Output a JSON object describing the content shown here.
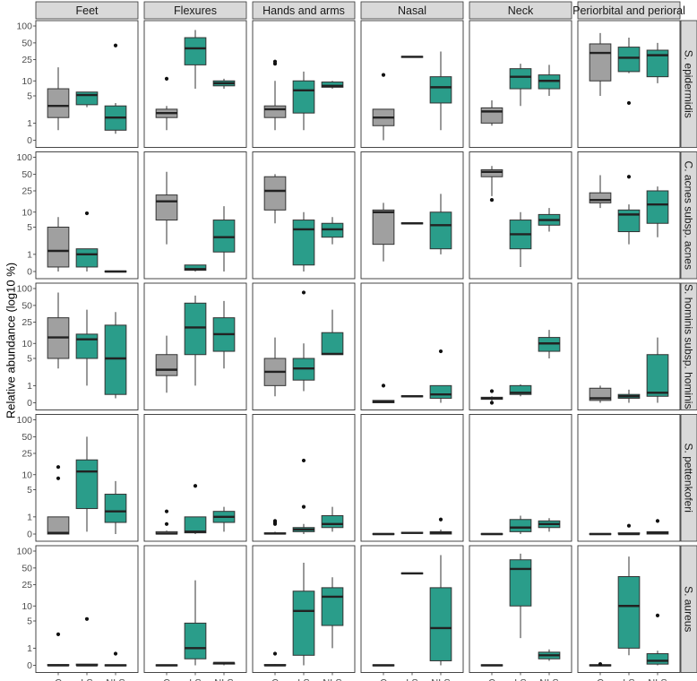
{
  "ylabel": "Relative abundance (log10 %)",
  "y_ticks": [
    "0",
    "1",
    "5",
    "10",
    "25",
    "50",
    "100"
  ],
  "colors": {
    "C": "#a0a0a0",
    "LS": "#2a9d8a",
    "NLS": "#2a9d8a",
    "strip": "#d9d9d9"
  },
  "chart_data": {
    "type": "boxplot",
    "y_scale": "log10(x+1)",
    "ylim": [
      0,
      100
    ],
    "ylabel": "Relative abundance (log10 %)",
    "groups": [
      "C",
      "LS",
      "NLS"
    ],
    "columns": [
      "Feet",
      "Flexures",
      "Hands and arms",
      "Nasal",
      "Neck",
      "Periorbital and perioral"
    ],
    "rows": [
      "S. epidermidis",
      "C. acnes subsp. acnes",
      "S. hominis subsp. hominis",
      "S. pettenkoferi",
      "S. aureus"
    ],
    "panels": [
      [
        [
          {
            "min": 0.5,
            "q1": 1.5,
            "med": 3,
            "q3": 7,
            "max": 18,
            "out": []
          },
          {
            "min": 2.8,
            "q1": 3.2,
            "med": 5.2,
            "q3": 6,
            "max": 6,
            "out": []
          },
          {
            "min": 0.3,
            "q1": 0.5,
            "med": 1.5,
            "q3": 3,
            "max": 3.5,
            "out": [
              45
            ]
          }
        ],
        [
          {
            "min": 0.5,
            "q1": 1.5,
            "med": 2,
            "q3": 2.5,
            "max": 3,
            "out": [
              11
            ]
          },
          {
            "min": 7,
            "q1": 20,
            "med": 40,
            "q3": 62,
            "max": 85,
            "out": []
          },
          {
            "min": 7,
            "q1": 8,
            "med": 9,
            "q3": 10,
            "max": 11,
            "out": []
          }
        ],
        [
          {
            "min": 0.5,
            "q1": 1.5,
            "med": 2.5,
            "q3": 3,
            "max": 10,
            "out": [
              21,
              23
            ]
          },
          {
            "min": 0.5,
            "q1": 2,
            "med": 6.5,
            "q3": 10,
            "max": 15,
            "out": []
          },
          {
            "min": 7,
            "q1": 7.5,
            "med": 8,
            "q3": 9.5,
            "max": 10,
            "out": []
          }
        ],
        [
          {
            "min": 0,
            "q1": 0.8,
            "med": 1.5,
            "q3": 2.5,
            "max": 2.5,
            "out": [
              13
            ]
          },
          {
            "min": 28,
            "q1": 28,
            "med": 28,
            "q3": 28,
            "max": 28,
            "out": []
          },
          {
            "min": 0.5,
            "q1": 3.5,
            "med": 7.5,
            "q3": 12,
            "max": 35,
            "out": []
          }
        ],
        [
          {
            "min": 0.8,
            "q1": 1,
            "med": 2.2,
            "q3": 2.7,
            "max": 4,
            "out": []
          },
          {
            "min": 3,
            "q1": 7,
            "med": 12,
            "q3": 17,
            "max": 21,
            "out": []
          },
          {
            "min": 5,
            "q1": 7,
            "med": 10,
            "q3": 13,
            "max": 20,
            "out": []
          }
        ],
        [
          {
            "min": 5,
            "q1": 10,
            "med": 33,
            "q3": 48,
            "max": 75,
            "out": []
          },
          {
            "min": 14,
            "q1": 15,
            "med": 27,
            "q3": 42,
            "max": 62,
            "out": [
              3.5
            ]
          },
          {
            "min": 9,
            "q1": 12,
            "med": 30,
            "q3": 37,
            "max": 50,
            "out": []
          }
        ]
      ],
      [
        [
          {
            "min": 0,
            "q1": 0.2,
            "med": 1.3,
            "q3": 5,
            "max": 8,
            "out": []
          },
          {
            "min": 0,
            "q1": 0.2,
            "med": 1,
            "q3": 1.5,
            "max": 1.5,
            "out": [
              9.5
            ]
          },
          {
            "min": 0,
            "q1": 0,
            "med": 0,
            "q3": 0,
            "max": 0,
            "out": []
          }
        ],
        [
          {
            "min": 2,
            "q1": 7,
            "med": 16,
            "q3": 21,
            "max": 55,
            "out": []
          },
          {
            "min": 0,
            "q1": 0.05,
            "med": 0.1,
            "q3": 0.3,
            "max": 0.3,
            "out": []
          },
          {
            "min": 0,
            "q1": 1.2,
            "med": 3,
            "q3": 7,
            "max": 13,
            "out": []
          }
        ],
        [
          {
            "min": 6,
            "q1": 11,
            "med": 25,
            "q3": 45,
            "max": 50,
            "out": []
          },
          {
            "min": 0,
            "q1": 0.3,
            "med": 4.5,
            "q3": 7,
            "max": 10,
            "out": []
          },
          {
            "min": 2,
            "q1": 3,
            "med": 4.5,
            "q3": 6,
            "max": 8,
            "out": []
          }
        ],
        [
          {
            "min": 0.5,
            "q1": 2,
            "med": 10,
            "q3": 11,
            "max": 15,
            "out": []
          },
          {
            "min": 6,
            "q1": 6,
            "med": 6,
            "q3": 6,
            "max": 6,
            "out": []
          },
          {
            "min": 1,
            "q1": 1.5,
            "med": 5.5,
            "q3": 10,
            "max": 22,
            "out": []
          }
        ],
        [
          {
            "min": 20,
            "q1": 45,
            "med": 55,
            "q3": 60,
            "max": 70,
            "out": [
              17
            ]
          },
          {
            "min": 0.2,
            "q1": 1.5,
            "med": 3.5,
            "q3": 7,
            "max": 10,
            "out": []
          },
          {
            "min": 4,
            "q1": 5.5,
            "med": 7,
            "q3": 9,
            "max": 12,
            "out": []
          }
        ],
        [
          {
            "min": 12,
            "q1": 15,
            "med": 17,
            "q3": 23,
            "max": 48,
            "out": []
          },
          {
            "min": 2,
            "q1": 4,
            "med": 9,
            "q3": 11,
            "max": 14,
            "out": [
              45
            ]
          },
          {
            "min": 3,
            "q1": 6,
            "med": 14,
            "q3": 25,
            "max": 30,
            "out": []
          }
        ]
      ],
      [
        [
          {
            "min": 3,
            "q1": 5,
            "med": 13,
            "q3": 30,
            "max": 85,
            "out": []
          },
          {
            "min": 1,
            "q1": 5,
            "med": 12,
            "q3": 15,
            "max": 42,
            "out": []
          },
          {
            "min": 0.2,
            "q1": 0.4,
            "med": 5,
            "q3": 22,
            "max": 38,
            "out": []
          }
        ],
        [
          {
            "min": 0.5,
            "q1": 2,
            "med": 2.8,
            "q3": 6,
            "max": 14,
            "out": []
          },
          {
            "min": 1,
            "q1": 6,
            "med": 20,
            "q3": 55,
            "max": 75,
            "out": []
          },
          {
            "min": 3,
            "q1": 7,
            "med": 15,
            "q3": 30,
            "max": 60,
            "out": []
          }
        ],
        [
          {
            "min": 0.3,
            "q1": 1,
            "med": 2.5,
            "q3": 5,
            "max": 13,
            "out": []
          },
          {
            "min": 0.6,
            "q1": 1.5,
            "med": 3,
            "q3": 5,
            "max": 10,
            "out": [
              85
            ]
          },
          {
            "min": 6,
            "q1": 6,
            "med": 6.2,
            "q3": 16,
            "max": 42,
            "out": []
          }
        ],
        [
          {
            "min": 0,
            "q1": 0,
            "med": 0.05,
            "q3": 0.1,
            "max": 0.1,
            "out": [
              1
            ]
          },
          {
            "min": 0.3,
            "q1": 0.3,
            "med": 0.3,
            "q3": 0.3,
            "max": 0.3,
            "out": []
          },
          {
            "min": 0,
            "q1": 0.2,
            "med": 0.4,
            "q3": 1,
            "max": 1,
            "out": [
              7
            ]
          }
        ],
        [
          {
            "min": 0.05,
            "q1": 0.15,
            "med": 0.2,
            "q3": 0.25,
            "max": 0.3,
            "out": [
              0.6,
              0
            ]
          },
          {
            "min": 0.3,
            "q1": 0.4,
            "med": 0.5,
            "q3": 1,
            "max": 1.1,
            "out": []
          },
          {
            "min": 5,
            "q1": 7,
            "med": 10,
            "q3": 13,
            "max": 18,
            "out": []
          }
        ],
        [
          {
            "min": 0,
            "q1": 0.1,
            "med": 0.2,
            "q3": 0.8,
            "max": 1,
            "out": []
          },
          {
            "min": 0,
            "q1": 0.2,
            "med": 0.3,
            "q3": 0.4,
            "max": 0.7,
            "out": []
          },
          {
            "min": 0,
            "q1": 0.3,
            "med": 0.5,
            "q3": 6,
            "max": 13,
            "out": []
          }
        ]
      ],
      [
        [
          {
            "min": 0,
            "q1": 0,
            "med": 0.05,
            "q3": 1,
            "max": 1,
            "out": [
              8.5,
              14
            ]
          },
          {
            "min": 0.1,
            "q1": 1.8,
            "med": 11.5,
            "q3": 19,
            "max": 50,
            "out": []
          },
          {
            "min": 0,
            "q1": 0.6,
            "med": 1.5,
            "q3": 4,
            "max": 7.5,
            "out": []
          }
        ],
        [
          {
            "min": 0,
            "q1": 0,
            "med": 0.02,
            "q3": 0.1,
            "max": 0.15,
            "out": [
              0.5,
              1.5
            ]
          },
          {
            "min": 0,
            "q1": 0.05,
            "med": 0.1,
            "q3": 1,
            "max": 1,
            "out": [
              6
            ]
          },
          {
            "min": 0.1,
            "q1": 0.6,
            "med": 1,
            "q3": 1.5,
            "max": 2,
            "out": []
          }
        ],
        [
          {
            "min": 0,
            "q1": 0,
            "med": 0.02,
            "q3": 0.05,
            "max": 0.1,
            "out": [
              0.5,
              0.6,
              0.7
            ]
          },
          {
            "min": 0,
            "q1": 0.1,
            "med": 0.2,
            "q3": 0.3,
            "max": 0.5,
            "out": [
              2,
              18.5
            ]
          },
          {
            "min": 0.1,
            "q1": 0.3,
            "med": 0.5,
            "q3": 1.1,
            "max": 2,
            "out": []
          }
        ],
        [
          {
            "min": 0,
            "q1": 0,
            "med": 0,
            "q3": 0,
            "max": 0,
            "out": []
          },
          {
            "min": 0.05,
            "q1": 0.05,
            "med": 0.05,
            "q3": 0.05,
            "max": 0.05,
            "out": []
          },
          {
            "min": 0,
            "q1": 0,
            "med": 0.05,
            "q3": 0.1,
            "max": 0.2,
            "out": [
              0.8
            ]
          }
        ],
        [
          {
            "min": 0,
            "q1": 0,
            "med": 0,
            "q3": 0,
            "max": 0,
            "out": []
          },
          {
            "min": 0,
            "q1": 0.1,
            "med": 0.3,
            "q3": 0.8,
            "max": 1.1,
            "out": []
          },
          {
            "min": 0.1,
            "q1": 0.3,
            "med": 0.5,
            "q3": 0.7,
            "max": 0.9,
            "out": []
          }
        ],
        [
          {
            "min": 0,
            "q1": 0,
            "med": 0,
            "q3": 0,
            "max": 0,
            "out": []
          },
          {
            "min": 0,
            "q1": 0,
            "med": 0,
            "q3": 0.05,
            "max": 0.05,
            "out": [
              0.4
            ]
          },
          {
            "min": 0,
            "q1": 0,
            "med": 0.05,
            "q3": 0.1,
            "max": 0.1,
            "out": [
              0.7
            ]
          }
        ]
      ],
      [
        [
          {
            "min": 0,
            "q1": 0,
            "med": 0,
            "q3": 0.02,
            "max": 0.05,
            "out": [
              2.5
            ]
          },
          {
            "min": 0,
            "q1": 0,
            "med": 0,
            "q3": 0.05,
            "max": 0.05,
            "out": [
              5.5
            ]
          },
          {
            "min": 0,
            "q1": 0,
            "med": 0,
            "q3": 0,
            "max": 0,
            "out": [
              0.6
            ]
          }
        ],
        [
          {
            "min": 0,
            "q1": 0,
            "med": 0,
            "q3": 0,
            "max": 0,
            "out": []
          },
          {
            "min": 0,
            "q1": 0.3,
            "med": 1,
            "q3": 4.5,
            "max": 30,
            "out": []
          },
          {
            "min": 0,
            "q1": 0.05,
            "med": 0.1,
            "q3": 0.1,
            "max": 0.1,
            "out": []
          }
        ],
        [
          {
            "min": 0,
            "q1": 0,
            "med": 0,
            "q3": 0.02,
            "max": 0.05,
            "out": [
              0.6
            ]
          },
          {
            "min": 0,
            "q1": 0.5,
            "med": 8,
            "q3": 19,
            "max": 62,
            "out": []
          },
          {
            "min": 1,
            "q1": 4,
            "med": 15,
            "q3": 22,
            "max": 34,
            "out": []
          }
        ],
        [
          {
            "min": 0,
            "q1": 0,
            "med": 0,
            "q3": 0,
            "max": 0,
            "out": []
          },
          {
            "min": 40,
            "q1": 40,
            "med": 40,
            "q3": 40,
            "max": 40,
            "out": []
          },
          {
            "min": 0,
            "q1": 0.2,
            "med": 3.5,
            "q3": 22,
            "max": 85,
            "out": []
          }
        ],
        [
          {
            "min": 0,
            "q1": 0,
            "med": 0,
            "q3": 0,
            "max": 0,
            "out": []
          },
          {
            "min": 2,
            "q1": 10,
            "med": 48,
            "q3": 70,
            "max": 90,
            "out": []
          },
          {
            "min": 0.2,
            "q1": 0.3,
            "med": 0.5,
            "q3": 0.7,
            "max": 0.9,
            "out": []
          }
        ],
        [
          {
            "min": 0,
            "q1": 0,
            "med": 0,
            "q3": 0,
            "max": 0,
            "out": [
              0.05
            ]
          },
          {
            "min": 0.5,
            "q1": 1,
            "med": 10,
            "q3": 35,
            "max": 80,
            "out": []
          },
          {
            "min": 0,
            "q1": 0.05,
            "med": 0.2,
            "q3": 0.6,
            "max": 0.8,
            "out": [
              6.5
            ]
          }
        ]
      ]
    ]
  }
}
